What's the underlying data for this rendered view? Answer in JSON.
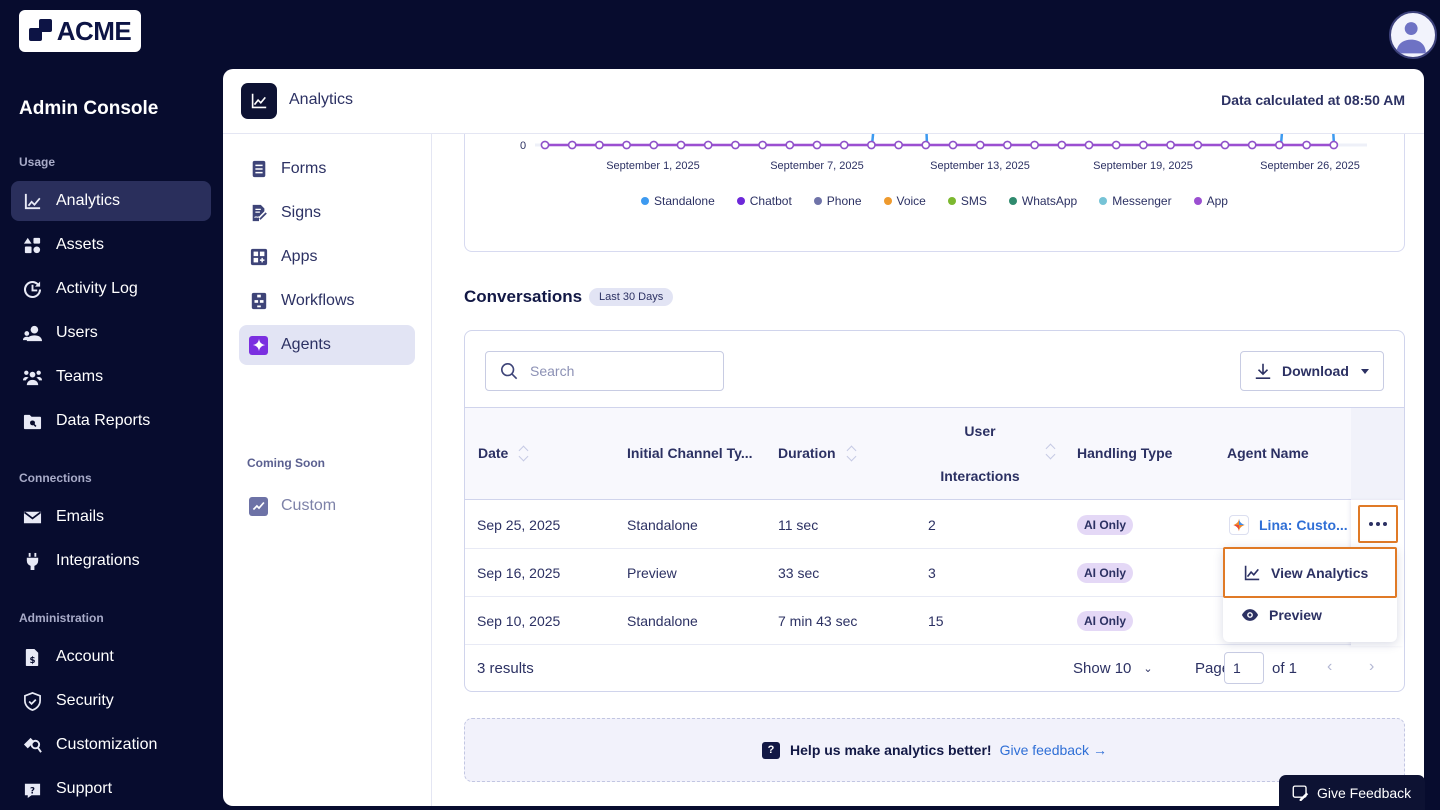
{
  "brand": {
    "logo_text": "ACME",
    "console_title": "Admin Console"
  },
  "sidebar": {
    "sections": [
      {
        "label": "Usage",
        "items": [
          {
            "label": "Analytics",
            "icon": "chart-line-icon",
            "active": true
          },
          {
            "label": "Assets",
            "icon": "shapes-icon"
          },
          {
            "label": "Activity Log",
            "icon": "history-icon"
          },
          {
            "label": "Users",
            "icon": "users-icon"
          },
          {
            "label": "Teams",
            "icon": "teams-icon"
          },
          {
            "label": "Data Reports",
            "icon": "folder-search-icon"
          }
        ]
      },
      {
        "label": "Connections",
        "items": [
          {
            "label": "Emails",
            "icon": "envelope-icon"
          },
          {
            "label": "Integrations",
            "icon": "plug-icon"
          }
        ]
      },
      {
        "label": "Administration",
        "items": [
          {
            "label": "Account",
            "icon": "invoice-icon"
          },
          {
            "label": "Security",
            "icon": "shield-icon"
          },
          {
            "label": "Customization",
            "icon": "brush-icon"
          },
          {
            "label": "Support",
            "icon": "support-icon"
          }
        ]
      }
    ]
  },
  "header": {
    "title": "Analytics",
    "data_calculated": "Data calculated at 08:50 AM"
  },
  "subnav": {
    "items": [
      {
        "label": "Forms",
        "icon": "form-icon"
      },
      {
        "label": "Signs",
        "icon": "sign-icon"
      },
      {
        "label": "Apps",
        "icon": "apps-icon"
      },
      {
        "label": "Workflows",
        "icon": "workflow-icon"
      },
      {
        "label": "Agents",
        "icon": "sparkle-icon",
        "active": true
      }
    ],
    "coming_soon_label": "Coming Soon",
    "coming_soon_items": [
      {
        "label": "Custom",
        "icon": "custom-chart-icon"
      }
    ],
    "collapse_label": "«"
  },
  "chart_data": {
    "type": "line",
    "title": "",
    "xlabel": "",
    "ylabel": "",
    "y_tick_visible": "0",
    "x_tick_labels": [
      "September 1, 2025",
      "September 7, 2025",
      "September 13, 2025",
      "September 19, 2025",
      "September 26, 2025"
    ],
    "x": [
      "Aug 28",
      "Aug 29",
      "Aug 30",
      "Aug 31",
      "Sep 1",
      "Sep 2",
      "Sep 3",
      "Sep 4",
      "Sep 5",
      "Sep 6",
      "Sep 7",
      "Sep 8",
      "Sep 9",
      "Sep 10",
      "Sep 11",
      "Sep 12",
      "Sep 13",
      "Sep 14",
      "Sep 15",
      "Sep 16",
      "Sep 17",
      "Sep 18",
      "Sep 19",
      "Sep 20",
      "Sep 21",
      "Sep 22",
      "Sep 23",
      "Sep 24",
      "Sep 25",
      "Sep 26"
    ],
    "series": [
      {
        "name": "Standalone",
        "color": "#3d9af0",
        "values": [
          0,
          0,
          0,
          0,
          0,
          0,
          0,
          0,
          0,
          0,
          0,
          0,
          0,
          1,
          0,
          0,
          0,
          0,
          0,
          0,
          0,
          0,
          0,
          0,
          0,
          0,
          0,
          0,
          1,
          0
        ]
      },
      {
        "name": "Chatbot",
        "color": "#6d28d9",
        "values": [
          0,
          0,
          0,
          0,
          0,
          0,
          0,
          0,
          0,
          0,
          0,
          0,
          0,
          0,
          0,
          0,
          0,
          0,
          0,
          0,
          0,
          0,
          0,
          0,
          0,
          0,
          0,
          0,
          0,
          0
        ]
      },
      {
        "name": "Phone",
        "color": "#6f73a8",
        "values": [
          0,
          0,
          0,
          0,
          0,
          0,
          0,
          0,
          0,
          0,
          0,
          0,
          0,
          0,
          0,
          0,
          0,
          0,
          0,
          0,
          0,
          0,
          0,
          0,
          0,
          0,
          0,
          0,
          0,
          0
        ]
      },
      {
        "name": "Voice",
        "color": "#ee9a2e",
        "values": [
          0,
          0,
          0,
          0,
          0,
          0,
          0,
          0,
          0,
          0,
          0,
          0,
          0,
          0,
          0,
          0,
          0,
          0,
          0,
          0,
          0,
          0,
          0,
          0,
          0,
          0,
          0,
          0,
          0,
          0
        ]
      },
      {
        "name": "SMS",
        "color": "#7cb82f",
        "values": [
          0,
          0,
          0,
          0,
          0,
          0,
          0,
          0,
          0,
          0,
          0,
          0,
          0,
          0,
          0,
          0,
          0,
          0,
          0,
          0,
          0,
          0,
          0,
          0,
          0,
          0,
          0,
          0,
          0,
          0
        ]
      },
      {
        "name": "WhatsApp",
        "color": "#2f8a6e",
        "values": [
          0,
          0,
          0,
          0,
          0,
          0,
          0,
          0,
          0,
          0,
          0,
          0,
          0,
          0,
          0,
          0,
          0,
          0,
          0,
          0,
          0,
          0,
          0,
          0,
          0,
          0,
          0,
          0,
          0,
          0
        ]
      },
      {
        "name": "Messenger",
        "color": "#76c3d6",
        "values": [
          0,
          0,
          0,
          0,
          0,
          0,
          0,
          0,
          0,
          0,
          0,
          0,
          0,
          0,
          0,
          0,
          0,
          0,
          0,
          0,
          0,
          0,
          0,
          0,
          0,
          0,
          0,
          0,
          0,
          0
        ]
      },
      {
        "name": "App",
        "color": "#9b4fd1",
        "values": [
          0,
          0,
          0,
          0,
          0,
          0,
          0,
          0,
          0,
          0,
          0,
          0,
          0,
          0,
          0,
          0,
          0,
          0,
          0,
          0,
          0,
          0,
          0,
          0,
          0,
          0,
          0,
          0,
          0,
          0
        ]
      }
    ],
    "legend_position": "bottom"
  },
  "conversations": {
    "title": "Conversations",
    "range_badge": "Last 30 Days",
    "search_placeholder": "Search",
    "download_label": "Download",
    "columns": {
      "date": "Date",
      "channel": "Initial Channel Ty...",
      "duration": "Duration",
      "interactions_line1": "User",
      "interactions_line2": "Interactions",
      "handling": "Handling Type",
      "agent": "Agent Name"
    },
    "rows": [
      {
        "date": "Sep 25, 2025",
        "channel": "Standalone",
        "duration": "11 sec",
        "interactions": "2",
        "handling": "AI Only",
        "agent": "Lina: Custo..."
      },
      {
        "date": "Sep 16, 2025",
        "channel": "Preview",
        "duration": "33 sec",
        "interactions": "3",
        "handling": "AI Only",
        "agent": ""
      },
      {
        "date": "Sep 10, 2025",
        "channel": "Standalone",
        "duration": "7 min 43 sec",
        "interactions": "15",
        "handling": "AI Only",
        "agent": ""
      }
    ],
    "results_label": "3 results",
    "show_label": "Show 10",
    "page_label": "Page:",
    "page_value": "1",
    "page_of": "of 1",
    "row_menu": {
      "view_analytics": "View Analytics",
      "preview": "Preview"
    }
  },
  "feedback": {
    "banner_text": "Help us make analytics better!",
    "banner_link": "Give feedback →",
    "floating_button": "Give Feedback"
  }
}
